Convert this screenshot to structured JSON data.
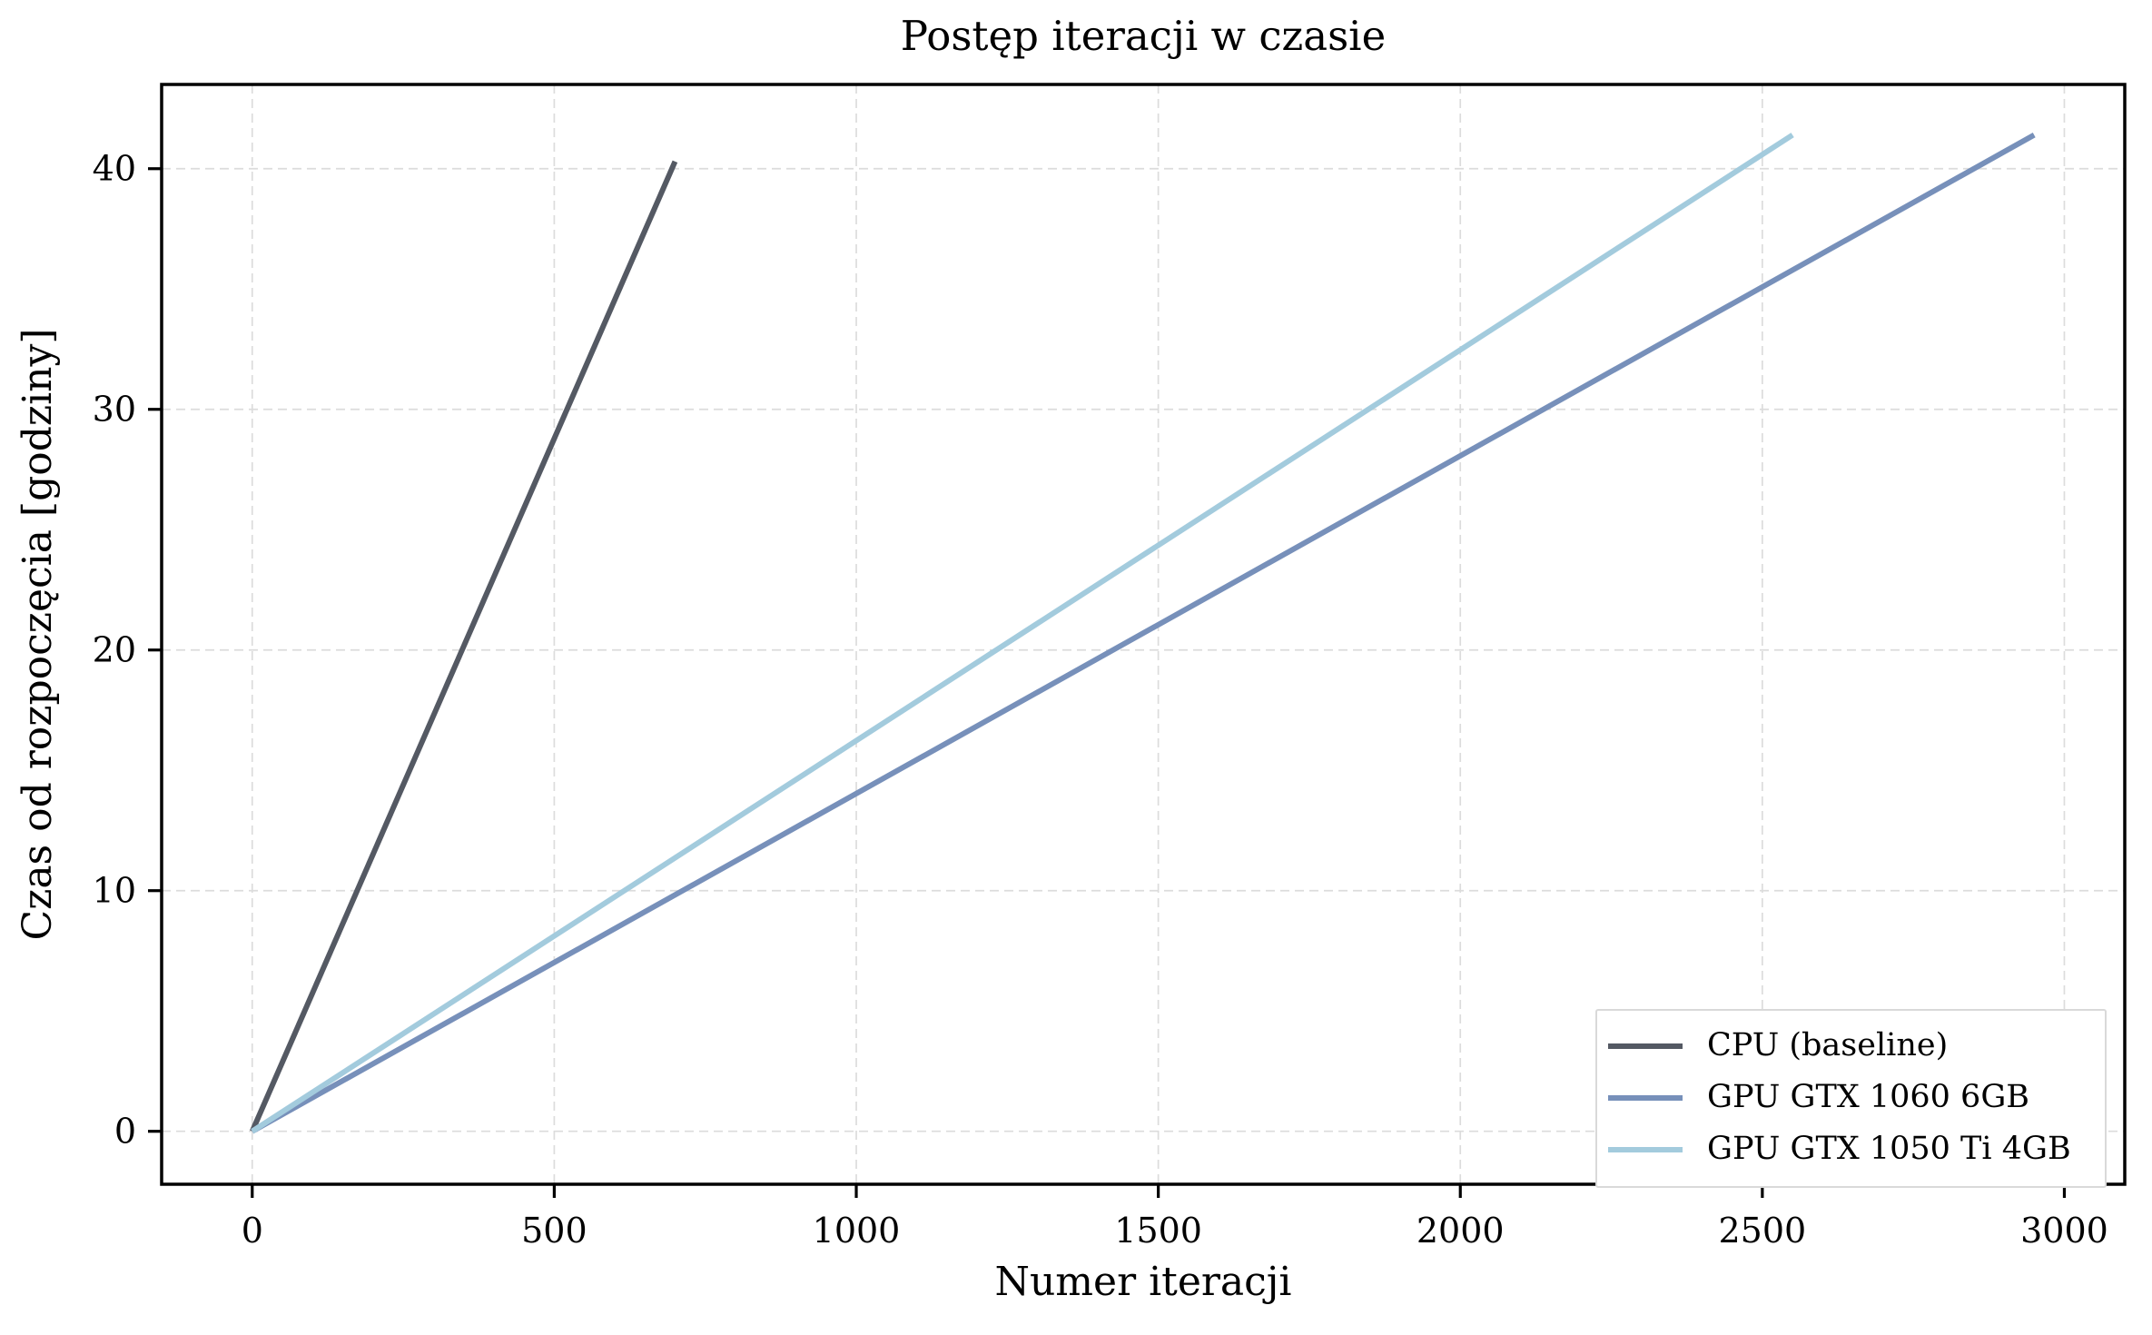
{
  "chart_data": {
    "type": "line",
    "title": "Postęp iteracji w czasie",
    "xlabel": "Numer iteracji",
    "ylabel": "Czas od rozpoczęcia [godziny]",
    "xlim": [
      -150,
      3100
    ],
    "ylim": [
      -2.2,
      43.5
    ],
    "xticks": [
      0,
      500,
      1000,
      1500,
      2000,
      2500,
      3000
    ],
    "yticks": [
      0,
      10,
      20,
      30,
      40
    ],
    "grid": true,
    "grid_color": "#dcdcdc",
    "background_color": "#ffffff",
    "spine_color": "#000000",
    "legend_position": "lower right",
    "series": [
      {
        "name": "CPU (baseline)",
        "color": "#545963",
        "x": [
          0,
          700
        ],
        "y": [
          0,
          40.3
        ]
      },
      {
        "name": "GPU GTX 1060 6GB",
        "color": "#7790ba",
        "x": [
          0,
          2950
        ],
        "y": [
          0,
          41.4
        ]
      },
      {
        "name": "GPU GTX 1050 Ti 4GB",
        "color": "#a3cbdd",
        "x": [
          0,
          2550
        ],
        "y": [
          0,
          41.4
        ]
      }
    ]
  }
}
